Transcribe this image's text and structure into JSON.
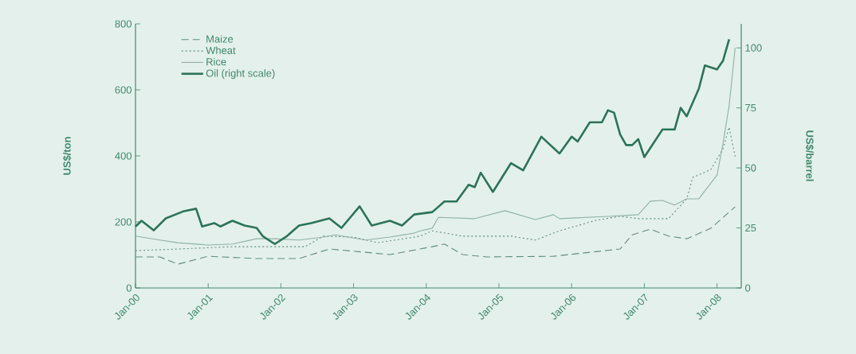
{
  "chart_data": {
    "type": "line",
    "ylabel": "US$/ton",
    "y2label": "US$/barrel",
    "xlim": [
      "2000-01",
      "2008-05"
    ],
    "xticks": [
      {
        "value": "2000-01",
        "label": "Jan-00"
      },
      {
        "value": "2001-01",
        "label": "Jan-01"
      },
      {
        "value": "2002-01",
        "label": "Jan-02"
      },
      {
        "value": "2003-01",
        "label": "Jan-03"
      },
      {
        "value": "2004-01",
        "label": "Jan-04"
      },
      {
        "value": "2005-01",
        "label": "Jan-05"
      },
      {
        "value": "2006-01",
        "label": "Jan-06"
      },
      {
        "value": "2007-01",
        "label": "Jan-07"
      },
      {
        "value": "2008-01",
        "label": "Jan-08"
      }
    ],
    "ylim": [
      0,
      800
    ],
    "yticks": [
      0,
      200,
      400,
      600,
      800
    ],
    "y2lim": [
      0,
      110
    ],
    "y2ticks": [
      0,
      25,
      50,
      75,
      100
    ],
    "legend": "top left",
    "grid": false,
    "series": [
      {
        "name": "Maize",
        "color": "#5e8f7c",
        "line_style": "dashed",
        "x": [
          "2000-01",
          "2000-05",
          "2000-08",
          "2001-01",
          "2001-09",
          "2002-04",
          "2002-09",
          "2003-03",
          "2003-07",
          "2004-02",
          "2004-04",
          "2004-07",
          "2004-11",
          "2005-10",
          "2006-09",
          "2006-11",
          "2007-02",
          "2007-05",
          "2007-08",
          "2007-12",
          "2008-04"
        ],
        "values": [
          94,
          94,
          72,
          96,
          89,
          89,
          118,
          108,
          101,
          125,
          133,
          101,
          94,
          96,
          118,
          161,
          178,
          157,
          149,
          181,
          246
        ]
      },
      {
        "name": "Wheat",
        "color": "#5e8f7c",
        "line_style": "dotted",
        "x": [
          "2000-01",
          "2000-08",
          "2001-05",
          "2001-09",
          "2002-05",
          "2002-08",
          "2003-01",
          "2003-05",
          "2003-12",
          "2004-02",
          "2004-07",
          "2005-03",
          "2005-07",
          "2005-11",
          "2006-05",
          "2006-09",
          "2006-12",
          "2007-05",
          "2007-08",
          "2007-09",
          "2007-12",
          "2008-02",
          "2008-03",
          "2008-04"
        ],
        "values": [
          113,
          118,
          125,
          125,
          125,
          157,
          154,
          137,
          157,
          173,
          157,
          157,
          145,
          173,
          205,
          217,
          210,
          210,
          270,
          335,
          359,
          422,
          487,
          398
        ]
      },
      {
        "name": "Rice",
        "color": "#8db3a4",
        "line_style": "solid",
        "x": [
          "2000-01",
          "2000-05",
          "2000-08",
          "2001-01",
          "2001-05",
          "2001-09",
          "2001-12",
          "2002-04",
          "2002-08",
          "2002-10",
          "2003-03",
          "2003-07",
          "2003-11",
          "2003-12",
          "2004-02",
          "2004-03",
          "2004-09",
          "2005-02",
          "2005-07",
          "2005-10",
          "2005-11",
          "2006-07",
          "2006-12",
          "2007-02",
          "2007-04",
          "2007-06",
          "2007-08",
          "2007-10",
          "2008-01",
          "2008-02",
          "2008-03",
          "2008-04"
        ],
        "values": [
          157,
          145,
          137,
          130,
          133,
          149,
          149,
          145,
          154,
          161,
          145,
          154,
          166,
          173,
          181,
          214,
          210,
          234,
          207,
          222,
          210,
          217,
          222,
          263,
          265,
          251,
          270,
          270,
          342,
          439,
          552,
          728
        ]
      },
      {
        "name": "Oil (right scale)",
        "color": "#2b7458",
        "line_style": "solid",
        "axis": "y2",
        "x": [
          "2000-01",
          "2000-02",
          "2000-04",
          "2000-06",
          "2000-09",
          "2000-11",
          "2000-12",
          "2001-02",
          "2001-03",
          "2001-05",
          "2001-07",
          "2001-09",
          "2001-10",
          "2001-12",
          "2002-02",
          "2002-04",
          "2002-06",
          "2002-09",
          "2002-11",
          "2003-02",
          "2003-04",
          "2003-07",
          "2003-09",
          "2003-11",
          "2004-02",
          "2004-04",
          "2004-06",
          "2004-08",
          "2004-09",
          "2004-10",
          "2004-12",
          "2005-03",
          "2005-05",
          "2005-08",
          "2005-11",
          "2006-01",
          "2006-02",
          "2006-04",
          "2006-06",
          "2006-07",
          "2006-08",
          "2006-09",
          "2006-10",
          "2006-11",
          "2006-12",
          "2007-01",
          "2007-04",
          "2007-06",
          "2007-07",
          "2007-08",
          "2007-10",
          "2007-11",
          "2008-01",
          "2008-02",
          "2008-03"
        ],
        "values": [
          25.6,
          28,
          24,
          29,
          32,
          33,
          25.6,
          27,
          25.6,
          28,
          26,
          25,
          21.6,
          18.3,
          21.6,
          26,
          27,
          29,
          25,
          34,
          26,
          28,
          26,
          30.6,
          31.6,
          36,
          36,
          43,
          42,
          48,
          40,
          52,
          49,
          63,
          56,
          63,
          61,
          69,
          69,
          74,
          73,
          64,
          59.5,
          59.5,
          62,
          54.5,
          66,
          66,
          75,
          71.5,
          83,
          92.7,
          91,
          94.7,
          103.6
        ]
      }
    ]
  }
}
